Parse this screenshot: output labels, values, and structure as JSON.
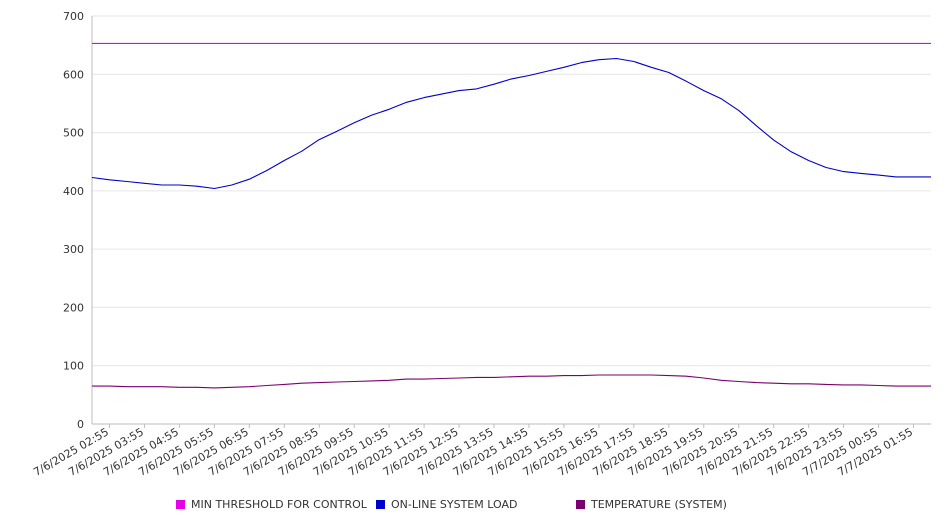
{
  "chart_data": {
    "type": "line",
    "title": "",
    "xlabel": "",
    "ylabel": "",
    "ylim": [
      0,
      700
    ],
    "y_ticks": [
      "0",
      "100",
      "200",
      "300",
      "400",
      "500",
      "600",
      "700"
    ],
    "grid": "horizontal",
    "legend_position": "bottom",
    "categories": [
      "7/6/2025 02:55",
      "7/6/2025 03:55",
      "7/6/2025 04:55",
      "7/6/2025 05:55",
      "7/6/2025 06:55",
      "7/6/2025 07:55",
      "7/6/2025 08:55",
      "7/6/2025 09:55",
      "7/6/2025 10:55",
      "7/6/2025 11:55",
      "7/6/2025 12:55",
      "7/6/2025 13:55",
      "7/6/2025 14:55",
      "7/6/2025 15:55",
      "7/6/2025 16:55",
      "7/6/2025 17:55",
      "7/6/2025 18:55",
      "7/6/2025 19:55",
      "7/6/2025 20:55",
      "7/6/2025 21:55",
      "7/6/2025 22:55",
      "7/6/2025 23:55",
      "7/7/2025 00:55",
      "7/7/2025 01:55"
    ],
    "x": [
      "7/6/2025 02:25",
      "7/6/2025 02:55",
      "7/6/2025 03:25",
      "7/6/2025 03:55",
      "7/6/2025 04:25",
      "7/6/2025 04:55",
      "7/6/2025 05:25",
      "7/6/2025 05:55",
      "7/6/2025 06:25",
      "7/6/2025 06:55",
      "7/6/2025 07:25",
      "7/6/2025 07:55",
      "7/6/2025 08:25",
      "7/6/2025 08:55",
      "7/6/2025 09:25",
      "7/6/2025 09:55",
      "7/6/2025 10:25",
      "7/6/2025 10:55",
      "7/6/2025 11:25",
      "7/6/2025 11:55",
      "7/6/2025 12:25",
      "7/6/2025 12:55",
      "7/6/2025 13:25",
      "7/6/2025 13:55",
      "7/6/2025 14:25",
      "7/6/2025 14:55",
      "7/6/2025 15:25",
      "7/6/2025 15:55",
      "7/6/2025 16:25",
      "7/6/2025 16:55",
      "7/6/2025 17:25",
      "7/6/2025 17:55",
      "7/6/2025 18:25",
      "7/6/2025 18:55",
      "7/6/2025 19:25",
      "7/6/2025 19:55",
      "7/6/2025 20:25",
      "7/6/2025 20:55",
      "7/6/2025 21:25",
      "7/6/2025 21:55",
      "7/6/2025 22:25",
      "7/6/2025 22:55",
      "7/6/2025 23:25",
      "7/6/2025 23:55",
      "7/7/2025 00:25",
      "7/7/2025 00:55",
      "7/7/2025 01:25",
      "7/7/2025 01:55",
      "7/7/2025 02:25"
    ],
    "series": [
      {
        "name": "MIN THRESHOLD FOR CONTROL",
        "color": "#e600e6",
        "values": [
          653,
          653,
          653,
          653,
          653,
          653,
          653,
          653,
          653,
          653,
          653,
          653,
          653,
          653,
          653,
          653,
          653,
          653,
          653,
          653,
          653,
          653,
          653,
          653,
          653,
          653,
          653,
          653,
          653,
          653,
          653,
          653,
          653,
          653,
          653,
          653,
          653,
          653,
          653,
          653,
          653,
          653,
          653,
          653,
          653,
          653,
          653,
          653,
          653
        ]
      },
      {
        "name": "ON-LINE SYSTEM LOAD",
        "color": "#0000cc",
        "values": [
          423,
          419,
          416,
          413,
          410,
          410,
          408,
          404,
          410,
          420,
          435,
          452,
          468,
          488,
          502,
          517,
          530,
          540,
          552,
          560,
          566,
          572,
          575,
          583,
          592,
          598,
          605,
          612,
          620,
          625,
          627,
          622,
          612,
          603,
          588,
          572,
          558,
          538,
          512,
          487,
          467,
          452,
          440,
          433,
          430,
          427,
          424,
          424,
          424
        ]
      },
      {
        "name": "TEMPERATURE (SYSTEM)",
        "color": "#7a0070",
        "values": [
          65,
          65,
          64,
          64,
          64,
          63,
          63,
          62,
          63,
          64,
          66,
          68,
          70,
          71,
          72,
          73,
          74,
          75,
          77,
          77,
          78,
          79,
          80,
          80,
          81,
          82,
          82,
          83,
          83,
          84,
          84,
          84,
          84,
          83,
          82,
          79,
          75,
          73,
          71,
          70,
          69,
          69,
          68,
          67,
          67,
          66,
          65,
          65,
          65
        ]
      }
    ]
  }
}
